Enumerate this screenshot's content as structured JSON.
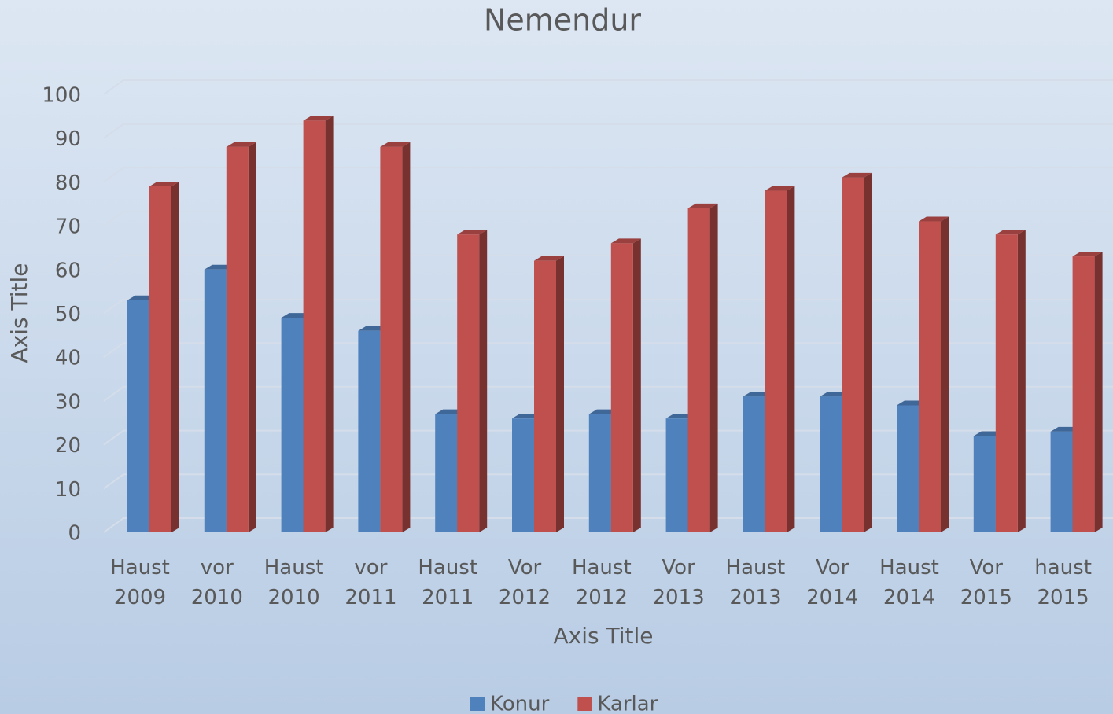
{
  "chart_data": {
    "type": "bar3d",
    "title": "Nemendur",
    "x_label": "Axis Title",
    "y_label": "Axis Title",
    "categories": [
      "Haust 2009",
      "vor 2010",
      "Haust 2010",
      "vor 2011",
      "Haust 2011",
      "Vor 2012",
      "Haust 2012",
      "Vor 2013",
      "Haust 2013",
      "Vor 2014",
      "Haust 2014",
      "Vor 2015",
      "haust 2015"
    ],
    "series": [
      {
        "name": "Konur",
        "color": "#4f81bd",
        "values": [
          53,
          60,
          49,
          46,
          27,
          26,
          27,
          26,
          31,
          31,
          29,
          22,
          23
        ]
      },
      {
        "name": "Karlar",
        "color": "#c0504d",
        "values": [
          79,
          88,
          94,
          88,
          68,
          62,
          66,
          74,
          78,
          81,
          71,
          68,
          63
        ]
      }
    ],
    "ylim": [
      0,
      100
    ],
    "yticks": [
      0,
      10,
      20,
      30,
      40,
      50,
      60,
      70,
      80,
      90,
      100
    ],
    "grid": true,
    "legend": "bottom"
  }
}
